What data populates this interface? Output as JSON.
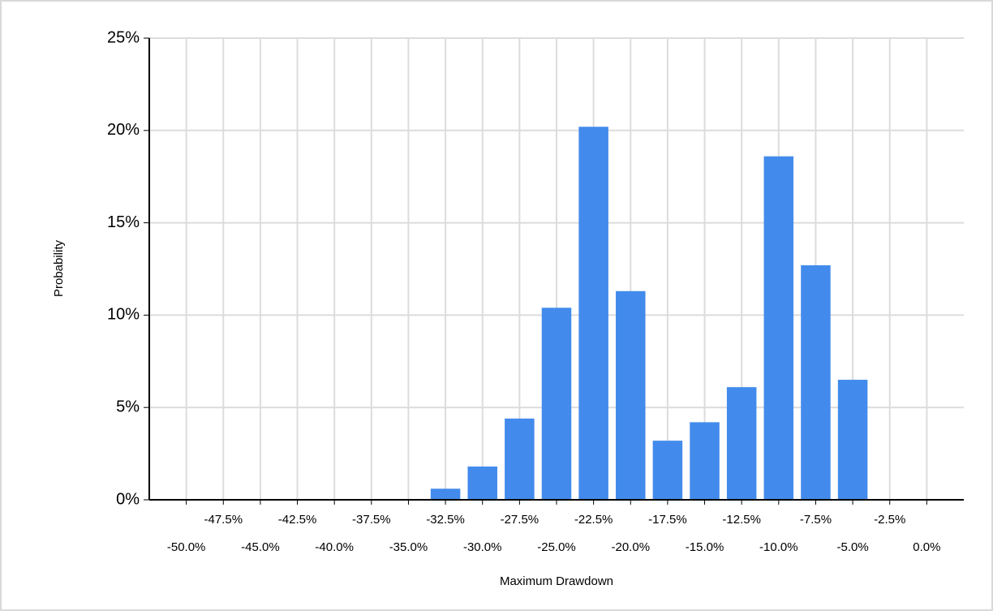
{
  "chart_data": {
    "type": "bar",
    "x_label": "Maximum Drawdown",
    "y_label": "Probability",
    "x": [
      -50.0,
      -47.5,
      -45.0,
      -42.5,
      -40.0,
      -37.5,
      -35.0,
      -32.5,
      -30.0,
      -27.5,
      -25.0,
      -22.5,
      -20.0,
      -17.5,
      -15.0,
      -12.5,
      -10.0,
      -7.5,
      -5.0,
      -2.5,
      0.0
    ],
    "values": [
      0,
      0,
      0,
      0,
      0,
      0,
      0,
      0.6,
      1.8,
      4.4,
      10.4,
      20.2,
      11.3,
      3.2,
      4.2,
      6.1,
      18.6,
      12.7,
      6.5,
      0,
      0
    ],
    "color": "#428bec",
    "xlim": [
      -52.5,
      2.5
    ],
    "xticks": [
      {
        "value": -50.0,
        "label": "-50.0%"
      },
      {
        "value": -47.5,
        "label": "-47.5%"
      },
      {
        "value": -45.0,
        "label": "-45.0%"
      },
      {
        "value": -42.5,
        "label": "-42.5%"
      },
      {
        "value": -40.0,
        "label": "-40.0%"
      },
      {
        "value": -37.5,
        "label": "-37.5%"
      },
      {
        "value": -35.0,
        "label": "-35.0%"
      },
      {
        "value": -32.5,
        "label": "-32.5%"
      },
      {
        "value": -30.0,
        "label": "-30.0%"
      },
      {
        "value": -27.5,
        "label": "-27.5%"
      },
      {
        "value": -25.0,
        "label": "-25.0%"
      },
      {
        "value": -22.5,
        "label": "-22.5%"
      },
      {
        "value": -20.0,
        "label": "-20.0%"
      },
      {
        "value": -17.5,
        "label": "-17.5%"
      },
      {
        "value": -15.0,
        "label": "-15.0%"
      },
      {
        "value": -12.5,
        "label": "-12.5%"
      },
      {
        "value": -10.0,
        "label": "-10.0%"
      },
      {
        "value": -7.5,
        "label": "-7.5%"
      },
      {
        "value": -5.0,
        "label": "-5.0%"
      },
      {
        "value": -2.5,
        "label": "-2.5%"
      },
      {
        "value": 0.0,
        "label": "0.0%"
      }
    ],
    "ylim": [
      0,
      25
    ],
    "yticks": [
      {
        "value": 0,
        "label": "0%"
      },
      {
        "value": 5,
        "label": "5%"
      },
      {
        "value": 10,
        "label": "10%"
      },
      {
        "value": 15,
        "label": "15%"
      },
      {
        "value": 20,
        "label": "20%"
      },
      {
        "value": 25,
        "label": "25%"
      }
    ],
    "grid": true
  }
}
